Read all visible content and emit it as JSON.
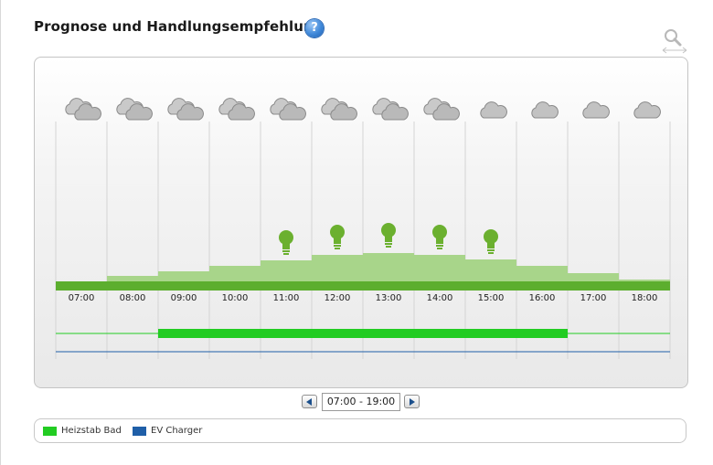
{
  "header": {
    "title": "Prognose und Handlungsempfehlung",
    "help_icon": "question-icon",
    "zoom_icon": "magnifier-icon"
  },
  "chart_data": {
    "type": "bar",
    "categories": [
      "07:00",
      "08:00",
      "09:00",
      "10:00",
      "11:00",
      "12:00",
      "13:00",
      "14:00",
      "15:00",
      "16:00",
      "17:00",
      "18:00"
    ],
    "weather": [
      "cloudy",
      "cloudy",
      "cloudy",
      "cloudy",
      "cloudy",
      "cloudy",
      "cloudy",
      "cloudy",
      "partly-cloudy",
      "partly-cloudy",
      "partly-cloudy",
      "partly-cloudy"
    ],
    "series": [
      {
        "values": [
          0,
          6,
          11,
          17,
          23,
          29,
          31,
          29,
          24,
          17,
          9,
          2
        ],
        "color": "#a8d58a"
      },
      {
        "values": [
          10,
          10,
          10,
          10,
          10,
          10,
          10,
          10,
          10,
          10,
          10,
          10
        ],
        "color": "#5cae2e"
      }
    ],
    "recommendation_hours": [
      "11:00",
      "12:00",
      "13:00",
      "14:00",
      "15:00"
    ],
    "recommendation_icon": "lightbulb-icon",
    "schedule": [
      {
        "name": "Heizstab Bad",
        "color": "#22cc22",
        "active_from": "09:00",
        "active_to": "17:00"
      },
      {
        "name": "EV Charger",
        "color": "#1f5fa8",
        "active_from": null,
        "active_to": null
      }
    ]
  },
  "navigation": {
    "range": "07:00 - 19:00",
    "prev_icon": "chevron-left-icon",
    "next_icon": "chevron-right-icon"
  },
  "legend": [
    {
      "label": "Heizstab Bad",
      "color": "#22cc22"
    },
    {
      "label": "EV Charger",
      "color": "#1f5fa8"
    }
  ]
}
